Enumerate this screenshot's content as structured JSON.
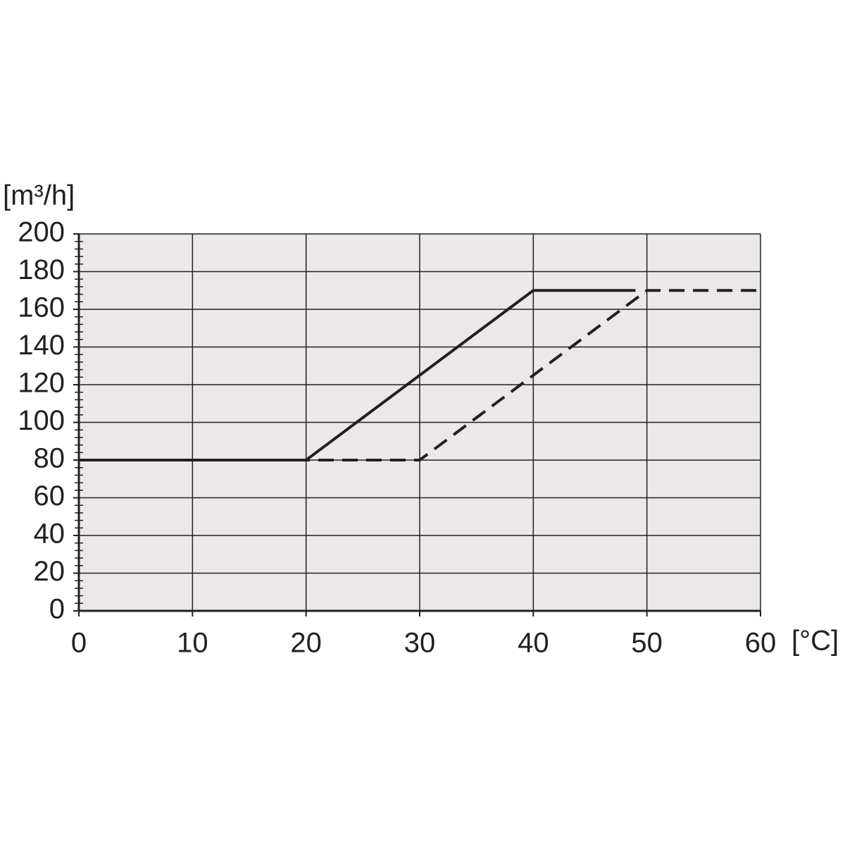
{
  "chart_data": {
    "type": "line",
    "x_label": "[°C]",
    "y_label": "[m³/h]",
    "xlim": [
      0,
      60
    ],
    "xticks": [
      0,
      10,
      20,
      30,
      40,
      50,
      60
    ],
    "ylim": [
      0,
      200
    ],
    "yticks": [
      0,
      20,
      40,
      60,
      80,
      100,
      120,
      140,
      160,
      180,
      200
    ],
    "yminorticks": [
      4,
      8,
      12,
      16,
      24,
      28,
      32,
      36,
      44,
      48,
      52,
      56,
      64,
      68,
      72,
      76,
      84,
      88,
      92,
      96,
      104,
      108,
      112,
      116,
      124,
      128,
      132,
      136,
      144,
      148,
      152,
      156,
      164,
      168,
      172,
      176,
      184,
      188,
      192,
      196
    ],
    "grid": true,
    "series": [
      {
        "x": [
          0,
          30,
          50,
          60
        ],
        "values": [
          80,
          80,
          170,
          170
        ],
        "color": "#231f20",
        "dashed": true
      },
      {
        "x": [
          0,
          20,
          40,
          49
        ],
        "values": [
          80,
          80,
          170,
          170
        ],
        "color": "#231f20",
        "dashed": false
      }
    ]
  }
}
